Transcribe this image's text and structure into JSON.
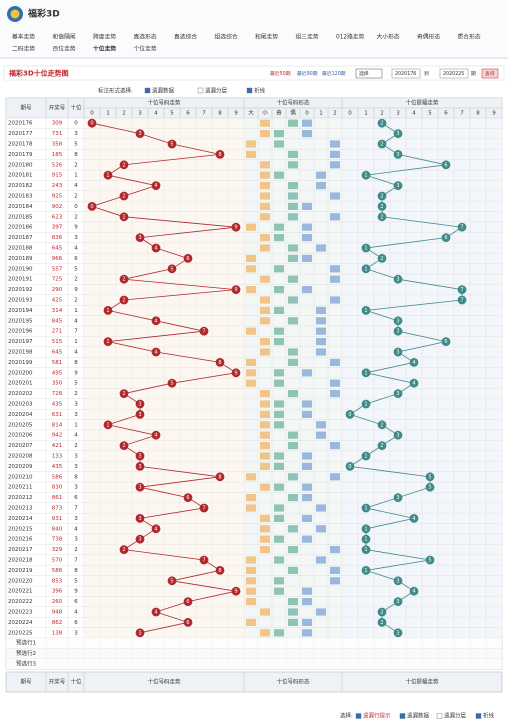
{
  "header": {
    "title": "福彩3D",
    "nav": [
      "基本走势",
      "和值隔尾",
      "跨度走势",
      "直选形态",
      "直选综合",
      "组选综合",
      "和尾走势",
      "组三走势",
      "012路走势",
      "大小形态",
      "奇偶形态",
      "质合形态",
      "二码走势",
      "百位走势",
      "十位走势",
      "个位走势"
    ],
    "active_nav": 14
  },
  "toolbar": {
    "title": "福彩3D十位走势图",
    "recent": [
      "最近50期",
      "最近90期",
      "最近120期"
    ],
    "select": "选择",
    "from": "2020176",
    "to_label": "到",
    "to": "2020225",
    "period_label": "期",
    "query": "查询"
  },
  "options": {
    "label": "标注形式选择:",
    "items": [
      "遗漏数据",
      "遗漏分层",
      "折线"
    ]
  },
  "table": {
    "headers": {
      "period": "期号",
      "number": "开奖号",
      "tens": "十位",
      "trend": "十位号码走势",
      "form": "十位号码形态",
      "amplitude": "十位振幅走势",
      "size": [
        "大",
        "小"
      ],
      "parity": [
        "奇",
        "偶"
      ],
      "route": [
        "0",
        "1",
        "2"
      ],
      "digits": [
        0,
        1,
        2,
        3,
        4,
        5,
        6,
        7,
        8,
        9
      ]
    },
    "rows": [
      {
        "period": "2020176",
        "number": "309",
        "tens": 0,
        "amplitude": 2
      },
      {
        "period": "2020177",
        "number": "731",
        "tens": 3,
        "amplitude": 3
      },
      {
        "period": "2020178",
        "number": "358",
        "tens": 5,
        "amplitude": 2
      },
      {
        "period": "2020179",
        "number": "185",
        "tens": 8,
        "amplitude": 3
      },
      {
        "period": "2020180",
        "number": "526",
        "tens": 2,
        "amplitude": 6
      },
      {
        "period": "2020181",
        "number": "915",
        "tens": 1,
        "amplitude": 1
      },
      {
        "period": "2020182",
        "number": "243",
        "tens": 4,
        "amplitude": 3
      },
      {
        "period": "2020183",
        "number": "925",
        "tens": 2,
        "amplitude": 2
      },
      {
        "period": "2020184",
        "number": "902",
        "tens": 0,
        "amplitude": 2
      },
      {
        "period": "2020185",
        "number": "623",
        "tens": 2,
        "amplitude": 2
      },
      {
        "period": "2020186",
        "number": "397",
        "tens": 9,
        "amplitude": 7
      },
      {
        "period": "2020187",
        "number": "836",
        "tens": 3,
        "amplitude": 6
      },
      {
        "period": "2020188",
        "number": "645",
        "tens": 4,
        "amplitude": 1
      },
      {
        "period": "2020189",
        "number": "966",
        "tens": 6,
        "amplitude": 2
      },
      {
        "period": "2020190",
        "number": "557",
        "tens": 5,
        "amplitude": 1
      },
      {
        "period": "2020191",
        "number": "725",
        "tens": 2,
        "amplitude": 3
      },
      {
        "period": "2020192",
        "number": "290",
        "tens": 9,
        "amplitude": 7
      },
      {
        "period": "2020193",
        "number": "425",
        "tens": 2,
        "amplitude": 7
      },
      {
        "period": "2020194",
        "number": "314",
        "tens": 1,
        "amplitude": 1
      },
      {
        "period": "2020195",
        "number": "845",
        "tens": 4,
        "amplitude": 3
      },
      {
        "period": "2020196",
        "number": "271",
        "tens": 7,
        "amplitude": 3
      },
      {
        "period": "2020197",
        "number": "515",
        "tens": 1,
        "amplitude": 6
      },
      {
        "period": "2020198",
        "number": "645",
        "tens": 4,
        "amplitude": 3
      },
      {
        "period": "2020199",
        "number": "581",
        "tens": 8,
        "amplitude": 4
      },
      {
        "period": "2020200",
        "number": "495",
        "tens": 9,
        "amplitude": 1
      },
      {
        "period": "2020201",
        "number": "350",
        "tens": 5,
        "amplitude": 4
      },
      {
        "period": "2020202",
        "number": "728",
        "tens": 2,
        "amplitude": 3
      },
      {
        "period": "2020203",
        "number": "435",
        "tens": 3,
        "amplitude": 1
      },
      {
        "period": "2020204",
        "number": "631",
        "tens": 3,
        "amplitude": 0
      },
      {
        "period": "2020205",
        "number": "814",
        "tens": 1,
        "amplitude": 2
      },
      {
        "period": "2020206",
        "number": "942",
        "tens": 4,
        "amplitude": 3
      },
      {
        "period": "2020207",
        "number": "421",
        "tens": 2,
        "amplitude": 2
      },
      {
        "period": "2020208",
        "number": "133",
        "tens": 3,
        "amplitude": 1
      },
      {
        "period": "2020209",
        "number": "435",
        "tens": 3,
        "amplitude": 0
      },
      {
        "period": "2020210",
        "number": "586",
        "tens": 8,
        "amplitude": 5
      },
      {
        "period": "2020211",
        "number": "830",
        "tens": 3,
        "amplitude": 5
      },
      {
        "period": "2020212",
        "number": "861",
        "tens": 6,
        "amplitude": 3
      },
      {
        "period": "2020213",
        "number": "873",
        "tens": 7,
        "amplitude": 1
      },
      {
        "period": "2020214",
        "number": "931",
        "tens": 3,
        "amplitude": 4
      },
      {
        "period": "2020215",
        "number": "840",
        "tens": 4,
        "amplitude": 1
      },
      {
        "period": "2020216",
        "number": "738",
        "tens": 3,
        "amplitude": 1
      },
      {
        "period": "2020217",
        "number": "329",
        "tens": 2,
        "amplitude": 1
      },
      {
        "period": "2020218",
        "number": "570",
        "tens": 7,
        "amplitude": 5
      },
      {
        "period": "2020219",
        "number": "586",
        "tens": 8,
        "amplitude": 1
      },
      {
        "period": "2020220",
        "number": "853",
        "tens": 5,
        "amplitude": 3
      },
      {
        "period": "2020221",
        "number": "396",
        "tens": 9,
        "amplitude": 4
      },
      {
        "period": "2020222",
        "number": "260",
        "tens": 6,
        "amplitude": 3
      },
      {
        "period": "2020223",
        "number": "948",
        "tens": 4,
        "amplitude": 2
      },
      {
        "period": "2020224",
        "number": "862",
        "tens": 6,
        "amplitude": 2
      },
      {
        "period": "2020225",
        "number": "138",
        "tens": 3,
        "amplitude": 3
      }
    ],
    "preselect": [
      "预选行1",
      "预选行2",
      "预选行3"
    ]
  },
  "footer": {
    "label": "选择:",
    "items": [
      "遗漏行提示",
      "遗漏数据",
      "遗漏分层",
      "折线"
    ]
  }
}
